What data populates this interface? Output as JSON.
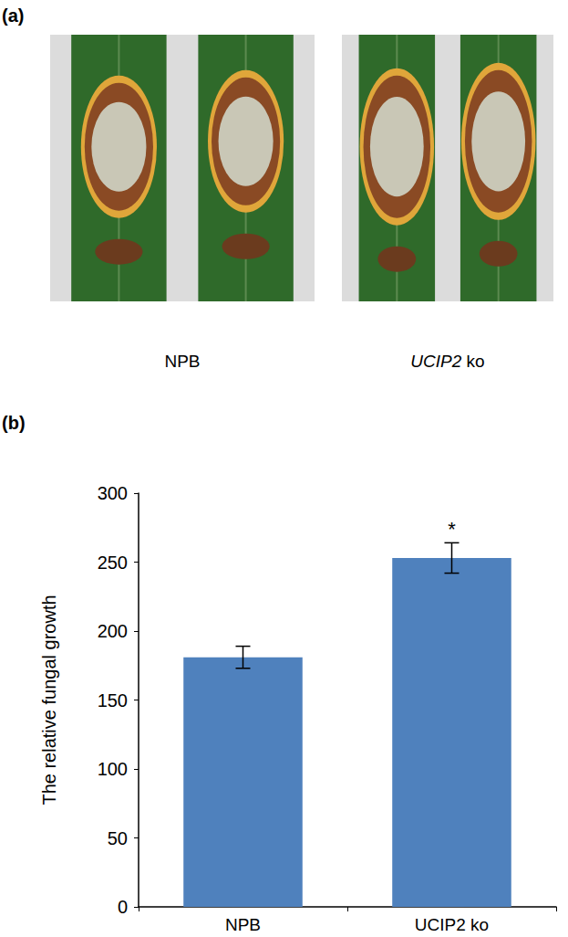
{
  "panel_a": {
    "label": "(a)",
    "captions": [
      "NPB",
      "UCIP2 ko"
    ]
  },
  "panel_b_label": "(b)",
  "chart_data": {
    "type": "bar",
    "categories": [
      "NPB",
      "UCIP2 ko"
    ],
    "values": [
      181,
      253
    ],
    "errors": [
      8,
      11
    ],
    "color": "#4f81bd",
    "ylabel": "The relative fungal growth",
    "ylim": [
      0,
      300
    ],
    "yticks": [
      0,
      50,
      100,
      150,
      200,
      250,
      300
    ],
    "annotations": [
      {
        "category": "UCIP2 ko",
        "text": "*"
      }
    ],
    "grid": false
  }
}
